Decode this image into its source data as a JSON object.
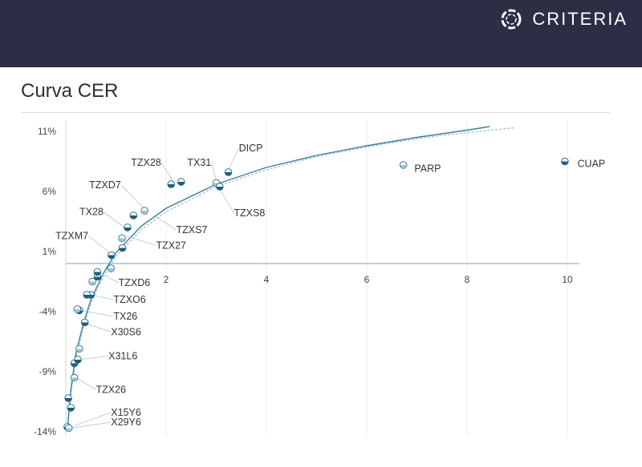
{
  "header": {
    "brand_name": "CRITERIA",
    "brand_icon": "criteria-ring-logo",
    "bg_color": "#2b2e45"
  },
  "page_title": "Curva CER",
  "chart_data": {
    "type": "scatter",
    "title": "Curva CER",
    "xlabel": "",
    "ylabel": "",
    "xlim": [
      -0.2,
      10.3
    ],
    "ylim": [
      -14,
      12
    ],
    "x_ticks": [
      2,
      4,
      6,
      8,
      10
    ],
    "x_tick_labels": [
      "2",
      "4",
      "6",
      "8",
      "10"
    ],
    "y_ticks": [
      11,
      6,
      1,
      -4,
      -9,
      -14
    ],
    "y_tick_labels": [
      "11%",
      "6%",
      "1%",
      "-4%",
      "-9%",
      "-14%"
    ],
    "grid": "vertical",
    "colors": {
      "primary": "#1d5f7f",
      "secondary": "#9dc3d6",
      "curve": "#3d7e9c",
      "axis": "#9fb2bf"
    },
    "series": [
      {
        "values": [
          {
            "x": 0.03,
            "y": -13.6
          },
          {
            "x": 0.06,
            "y": -13.7
          },
          {
            "x": 0.1,
            "y": -12.0
          },
          {
            "x": 0.05,
            "y": -11.2
          },
          {
            "x": 0.17,
            "y": -9.5
          },
          {
            "x": 0.17,
            "y": -8.3
          },
          {
            "x": 0.24,
            "y": -8.0
          },
          {
            "x": 0.27,
            "y": -7.1
          },
          {
            "x": 0.38,
            "y": -4.9
          },
          {
            "x": 0.27,
            "y": -3.9
          },
          {
            "x": 0.23,
            "y": -3.8
          },
          {
            "x": 0.5,
            "y": -2.6
          },
          {
            "x": 0.42,
            "y": -2.6
          },
          {
            "x": 0.53,
            "y": -1.5
          },
          {
            "x": 0.63,
            "y": -1.1
          },
          {
            "x": 0.63,
            "y": -0.7
          },
          {
            "x": 0.9,
            "y": -0.4
          },
          {
            "x": 0.91,
            "y": 0.7
          },
          {
            "x": 1.13,
            "y": 1.3
          },
          {
            "x": 1.12,
            "y": 2.1
          },
          {
            "x": 1.23,
            "y": 3.0
          },
          {
            "x": 1.35,
            "y": 4.0
          },
          {
            "x": 1.57,
            "y": 4.4
          },
          {
            "x": 2.1,
            "y": 6.6
          },
          {
            "x": 2.3,
            "y": 6.8
          },
          {
            "x": 3.0,
            "y": 6.7
          },
          {
            "x": 3.07,
            "y": 6.4
          },
          {
            "x": 3.24,
            "y": 7.6
          },
          {
            "x": 6.73,
            "y": 8.2
          },
          {
            "x": 9.95,
            "y": 8.5
          }
        ]
      }
    ],
    "fit_curve": {
      "points": [
        {
          "x": 0.03,
          "y": -13.8
        },
        {
          "x": 0.1,
          "y": -10.5
        },
        {
          "x": 0.2,
          "y": -7.5
        },
        {
          "x": 0.35,
          "y": -5.0
        },
        {
          "x": 0.5,
          "y": -3.0
        },
        {
          "x": 0.75,
          "y": -0.8
        },
        {
          "x": 1.0,
          "y": 0.9
        },
        {
          "x": 1.5,
          "y": 3.1
        },
        {
          "x": 2.0,
          "y": 4.6
        },
        {
          "x": 3.0,
          "y": 6.6
        },
        {
          "x": 4.0,
          "y": 8.0
        },
        {
          "x": 5.0,
          "y": 9.0
        },
        {
          "x": 6.0,
          "y": 9.8
        },
        {
          "x": 7.0,
          "y": 10.5
        },
        {
          "x": 8.0,
          "y": 11.1
        },
        {
          "x": 8.45,
          "y": 11.4
        }
      ]
    },
    "fit_curve_alt": {
      "points": [
        {
          "x": 0.03,
          "y": -14.0
        },
        {
          "x": 0.1,
          "y": -10.9
        },
        {
          "x": 0.2,
          "y": -7.9
        },
        {
          "x": 0.35,
          "y": -5.3
        },
        {
          "x": 0.5,
          "y": -3.3
        },
        {
          "x": 0.75,
          "y": -1.1
        },
        {
          "x": 1.0,
          "y": 0.6
        },
        {
          "x": 1.5,
          "y": 2.8
        },
        {
          "x": 2.0,
          "y": 4.3
        },
        {
          "x": 3.0,
          "y": 6.4
        },
        {
          "x": 4.0,
          "y": 7.8
        },
        {
          "x": 5.0,
          "y": 8.9
        },
        {
          "x": 6.0,
          "y": 9.7
        },
        {
          "x": 7.0,
          "y": 10.4
        },
        {
          "x": 8.0,
          "y": 10.9
        },
        {
          "x": 8.95,
          "y": 11.3
        }
      ]
    },
    "annotations": [
      {
        "text": "TZX28",
        "label_x": 1.9,
        "label_y": 8.4,
        "point_x": 2.15,
        "point_y": 6.8
      },
      {
        "text": "TX31",
        "label_x": 2.9,
        "label_y": 8.4,
        "point_x": 3.0,
        "point_y": 6.9
      },
      {
        "text": "DICP",
        "label_x": 3.45,
        "label_y": 9.6,
        "point_x": 3.24,
        "point_y": 7.8
      },
      {
        "text": "TZXD7",
        "label_x": 1.1,
        "label_y": 6.55,
        "point_x": 1.55,
        "point_y": 4.6
      },
      {
        "text": "TZXS8",
        "label_x": 3.35,
        "label_y": 4.2,
        "point_x": 3.07,
        "point_y": 6.2
      },
      {
        "text": "TX28",
        "label_x": 0.75,
        "label_y": 4.3,
        "point_x": 1.2,
        "point_y": 2.9
      },
      {
        "text": "TZXS7",
        "label_x": 2.2,
        "label_y": 2.8,
        "point_x": 1.8,
        "point_y": 3.9
      },
      {
        "text": "TZXM7",
        "label_x": 0.45,
        "label_y": 2.3,
        "point_x": 0.9,
        "point_y": 0.8
      },
      {
        "text": "TZX27",
        "label_x": 1.8,
        "label_y": 1.5,
        "point_x": 1.2,
        "point_y": 2.3
      },
      {
        "text": "TZXD6",
        "label_x": 1.05,
        "label_y": -1.6,
        "point_x": 0.7,
        "point_y": -0.8
      },
      {
        "text": "TZXO6",
        "label_x": 0.95,
        "label_y": -3.0,
        "point_x": 0.5,
        "point_y": -2.6
      },
      {
        "text": "TX26",
        "label_x": 0.95,
        "label_y": -4.4,
        "point_x": 0.3,
        "point_y": -3.9
      },
      {
        "text": "X30S6",
        "label_x": 0.9,
        "label_y": -5.7,
        "point_x": 0.4,
        "point_y": -5.0
      },
      {
        "text": "X31L6",
        "label_x": 0.85,
        "label_y": -7.7,
        "point_x": 0.25,
        "point_y": -8.0
      },
      {
        "text": "TZX26",
        "label_x": 0.6,
        "label_y": -10.5,
        "point_x": 0.2,
        "point_y": -9.5
      },
      {
        "text": "X15Y6",
        "label_x": 0.9,
        "label_y": -12.4,
        "point_x": 0.1,
        "point_y": -13.6
      },
      {
        "text": "X29Y6",
        "label_x": 0.9,
        "label_y": -13.2,
        "point_x": 0.1,
        "point_y": -13.7
      },
      {
        "text": "PARP",
        "label_x": 6.95,
        "label_y": 7.9,
        "point_x": 6.9,
        "point_y": 7.9
      },
      {
        "text": "CUAP",
        "label_x": 10.2,
        "label_y": 8.3,
        "point_x": 10.15,
        "point_y": 8.3
      }
    ]
  }
}
